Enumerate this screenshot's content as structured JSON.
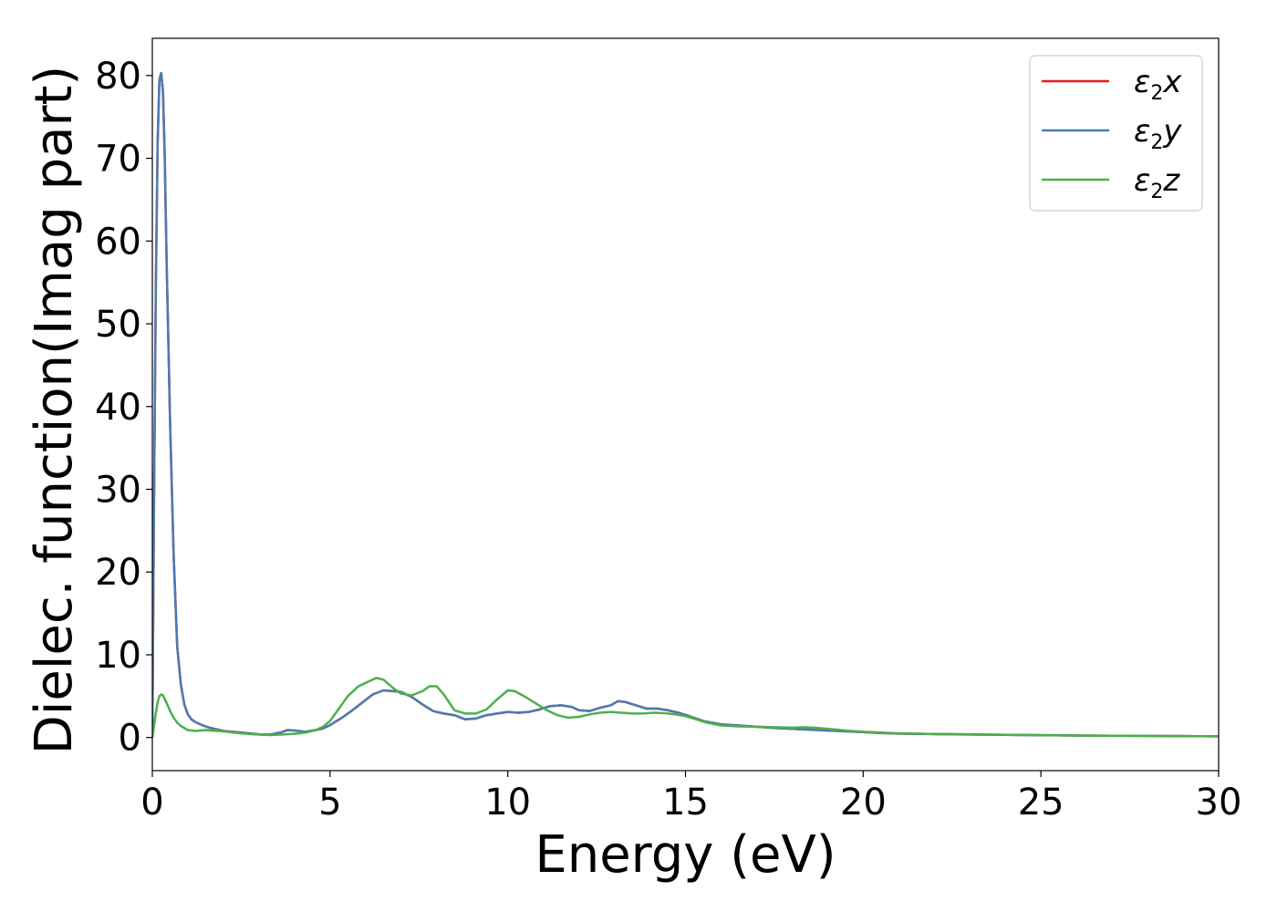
{
  "chart_data": {
    "type": "line",
    "xlabel": "Energy (eV)",
    "ylabel": "Dielec. function(Imag part)",
    "xlim": [
      0,
      30
    ],
    "ylim": [
      -4,
      84.5
    ],
    "xticks": [
      0,
      5,
      10,
      15,
      20,
      25,
      30
    ],
    "yticks": [
      0,
      10,
      20,
      30,
      40,
      50,
      60,
      70,
      80
    ],
    "grid": false,
    "legend_position": "top-right",
    "series": [
      {
        "name": "ε2x",
        "label_main": "ε",
        "label_sub": "2",
        "label_tail": "x",
        "color": "#e41a1c",
        "x": [
          0,
          0.05,
          0.1,
          0.15,
          0.2,
          0.25,
          0.3,
          0.35,
          0.4,
          0.5,
          0.6,
          0.7,
          0.8,
          0.9,
          1.0,
          1.1,
          1.2,
          1.4,
          1.6,
          1.8,
          2.0,
          2.5,
          3.0,
          3.3,
          3.6,
          3.8,
          4.0,
          4.3,
          4.6,
          4.8,
          5.0,
          5.3,
          5.6,
          5.9,
          6.2,
          6.5,
          6.8,
          7.0,
          7.3,
          7.6,
          7.9,
          8.2,
          8.5,
          8.8,
          9.1,
          9.4,
          9.7,
          10.0,
          10.3,
          10.6,
          10.9,
          11.2,
          11.5,
          11.8,
          12.0,
          12.3,
          12.6,
          12.9,
          13.1,
          13.3,
          13.6,
          13.9,
          14.2,
          14.5,
          14.8,
          15.1,
          15.5,
          16.0,
          16.5,
          17.0,
          17.5,
          18.0,
          18.5,
          19.0,
          19.5,
          20.0,
          20.5,
          21.0,
          22.0,
          23.0,
          24.0,
          25.0,
          26.0,
          27.0,
          28.0,
          29.0,
          30.0
        ],
        "y": [
          0,
          30,
          55,
          72,
          79.5,
          80.3,
          78,
          70,
          58,
          38,
          22,
          11,
          6.5,
          4,
          2.8,
          2.2,
          1.9,
          1.5,
          1.2,
          1.0,
          0.8,
          0.6,
          0.4,
          0.35,
          0.6,
          0.9,
          0.85,
          0.7,
          0.9,
          1.1,
          1.5,
          2.3,
          3.2,
          4.2,
          5.2,
          5.7,
          5.6,
          5.5,
          4.9,
          4.0,
          3.2,
          2.9,
          2.7,
          2.2,
          2.3,
          2.7,
          2.9,
          3.1,
          3.0,
          3.1,
          3.4,
          3.8,
          3.9,
          3.7,
          3.3,
          3.2,
          3.6,
          3.9,
          4.4,
          4.3,
          3.9,
          3.5,
          3.5,
          3.3,
          3.0,
          2.6,
          2.0,
          1.6,
          1.45,
          1.3,
          1.15,
          1.05,
          0.95,
          0.85,
          0.75,
          0.65,
          0.55,
          0.48,
          0.42,
          0.38,
          0.33,
          0.28,
          0.25,
          0.22,
          0.2,
          0.18,
          0.15
        ]
      },
      {
        "name": "ε2y",
        "label_main": "ε",
        "label_sub": "2",
        "label_tail": "y",
        "color": "#4a7bb4",
        "x": [
          0,
          0.05,
          0.1,
          0.15,
          0.2,
          0.25,
          0.3,
          0.35,
          0.4,
          0.5,
          0.6,
          0.7,
          0.8,
          0.9,
          1.0,
          1.1,
          1.2,
          1.4,
          1.6,
          1.8,
          2.0,
          2.5,
          3.0,
          3.3,
          3.6,
          3.8,
          4.0,
          4.3,
          4.6,
          4.8,
          5.0,
          5.3,
          5.6,
          5.9,
          6.2,
          6.5,
          6.8,
          7.0,
          7.3,
          7.6,
          7.9,
          8.2,
          8.5,
          8.8,
          9.1,
          9.4,
          9.7,
          10.0,
          10.3,
          10.6,
          10.9,
          11.2,
          11.5,
          11.8,
          12.0,
          12.3,
          12.6,
          12.9,
          13.1,
          13.3,
          13.6,
          13.9,
          14.2,
          14.5,
          14.8,
          15.1,
          15.5,
          16.0,
          16.5,
          17.0,
          17.5,
          18.0,
          18.5,
          19.0,
          19.5,
          20.0,
          20.5,
          21.0,
          22.0,
          23.0,
          24.0,
          25.0,
          26.0,
          27.0,
          28.0,
          29.0,
          30.0
        ],
        "y": [
          0,
          30,
          55,
          72,
          79.5,
          80.3,
          78,
          70,
          58,
          38,
          22,
          11,
          6.5,
          4,
          2.8,
          2.2,
          1.9,
          1.5,
          1.2,
          1.0,
          0.8,
          0.6,
          0.4,
          0.35,
          0.6,
          0.9,
          0.85,
          0.7,
          0.9,
          1.1,
          1.5,
          2.3,
          3.2,
          4.2,
          5.2,
          5.7,
          5.6,
          5.5,
          4.9,
          4.0,
          3.2,
          2.9,
          2.7,
          2.2,
          2.3,
          2.7,
          2.9,
          3.1,
          3.0,
          3.1,
          3.4,
          3.8,
          3.9,
          3.7,
          3.3,
          3.2,
          3.6,
          3.9,
          4.4,
          4.3,
          3.9,
          3.5,
          3.5,
          3.3,
          3.0,
          2.6,
          2.0,
          1.6,
          1.45,
          1.3,
          1.15,
          1.05,
          0.95,
          0.85,
          0.75,
          0.65,
          0.55,
          0.48,
          0.42,
          0.38,
          0.33,
          0.28,
          0.25,
          0.22,
          0.2,
          0.18,
          0.15
        ]
      },
      {
        "name": "ε2z",
        "label_main": "ε",
        "label_sub": "2",
        "label_tail": "z",
        "color": "#4daf4a",
        "x": [
          0,
          0.05,
          0.1,
          0.15,
          0.2,
          0.25,
          0.3,
          0.4,
          0.5,
          0.6,
          0.7,
          0.8,
          1.0,
          1.2,
          1.5,
          2.0,
          2.5,
          3.0,
          3.3,
          3.6,
          4.0,
          4.3,
          4.6,
          4.8,
          5.0,
          5.2,
          5.5,
          5.8,
          6.1,
          6.3,
          6.5,
          6.8,
          7.0,
          7.3,
          7.6,
          7.8,
          8.0,
          8.2,
          8.5,
          8.8,
          9.1,
          9.4,
          9.7,
          10.0,
          10.2,
          10.5,
          10.8,
          11.1,
          11.4,
          11.7,
          12.0,
          12.3,
          12.6,
          12.9,
          13.2,
          13.5,
          13.8,
          14.1,
          14.4,
          14.7,
          15.0,
          15.3,
          15.6,
          16.0,
          16.5,
          17.0,
          17.5,
          18.0,
          18.3,
          18.6,
          19.0,
          19.5,
          20.0,
          20.5,
          21.0,
          22.0,
          23.0,
          24.0,
          25.0,
          26.0,
          27.0,
          28.0,
          29.0,
          30.0
        ],
        "y": [
          0,
          1.5,
          3.0,
          4.3,
          5.0,
          5.2,
          5.1,
          4.2,
          3.2,
          2.4,
          1.8,
          1.4,
          0.9,
          0.8,
          0.9,
          0.75,
          0.5,
          0.35,
          0.3,
          0.35,
          0.45,
          0.6,
          0.9,
          1.3,
          2.0,
          3.2,
          5.0,
          6.2,
          6.8,
          7.2,
          7.0,
          5.9,
          5.3,
          5.1,
          5.6,
          6.2,
          6.2,
          5.2,
          3.3,
          2.9,
          2.9,
          3.4,
          4.6,
          5.7,
          5.6,
          4.9,
          4.1,
          3.3,
          2.7,
          2.4,
          2.5,
          2.8,
          3.0,
          3.1,
          3.0,
          2.9,
          2.9,
          3.0,
          2.95,
          2.8,
          2.6,
          2.2,
          1.8,
          1.45,
          1.35,
          1.3,
          1.25,
          1.2,
          1.25,
          1.2,
          1.05,
          0.85,
          0.7,
          0.6,
          0.5,
          0.42,
          0.36,
          0.32,
          0.28,
          0.25,
          0.22,
          0.2,
          0.18,
          0.15
        ]
      }
    ]
  }
}
